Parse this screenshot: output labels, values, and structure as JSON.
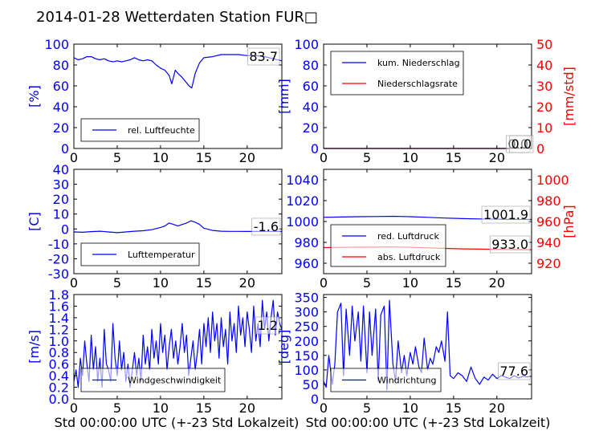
{
  "figure": {
    "title": "2014-01-28 Wetterdaten Station FUR□",
    "xlabel_left": "Std 00:00:00 UTC (+-23 Std Lokalzeit)",
    "xlabel_right": "Std 00:00:00 UTC (+-23 Std Lokalzeit)"
  },
  "colors": {
    "primary": "#0000ff",
    "secondary": "#ff0000",
    "axis": "#000000"
  },
  "chart_data": [
    {
      "id": "humidity",
      "type": "line",
      "ylabel": "[%]",
      "xlim": [
        0,
        24
      ],
      "ylim": [
        0,
        100
      ],
      "xticks": [
        0,
        5,
        10,
        15,
        20
      ],
      "yticks": [
        0,
        20,
        40,
        60,
        80,
        100
      ],
      "series": [
        {
          "name": "rel. Luftfeuchte",
          "color": "#0000ff",
          "x": [
            0,
            0.5,
            1,
            1.5,
            2,
            2.5,
            3,
            3.5,
            4,
            4.5,
            5,
            5.5,
            6,
            6.5,
            7,
            7.5,
            8,
            8.5,
            9,
            9.5,
            10,
            10.5,
            11,
            11.3,
            11.7,
            12,
            12.5,
            13,
            13.3,
            13.6,
            14,
            14.5,
            15,
            16,
            17,
            18,
            19,
            20,
            21,
            22,
            23,
            24
          ],
          "y": [
            87,
            85,
            86,
            88,
            88,
            86,
            85,
            86,
            84,
            83,
            84,
            83,
            84,
            85,
            87,
            85,
            84,
            85,
            84,
            80,
            77,
            75,
            70,
            62,
            75,
            72,
            68,
            63,
            60,
            58,
            72,
            82,
            87,
            88,
            90,
            90,
            90,
            89,
            89,
            88,
            86,
            84
          ]
        }
      ],
      "annotations": [
        "83.7"
      ],
      "legend_loc": "lower-left"
    },
    {
      "id": "precip",
      "type": "line",
      "ylabel": "[mm]",
      "ylabel_right": "[mm/std]",
      "xlim": [
        0,
        24
      ],
      "ylim": [
        0,
        100
      ],
      "ylim_right": [
        0,
        50
      ],
      "xticks": [
        0,
        5,
        10,
        15,
        20
      ],
      "yticks": [
        0,
        20,
        40,
        60,
        80,
        100
      ],
      "yticks_right": [
        0,
        10,
        20,
        30,
        40,
        50
      ],
      "series": [
        {
          "name": "kum. Niederschlag",
          "color": "#0000ff",
          "axis": "left",
          "x": [
            0,
            24
          ],
          "y": [
            0,
            0
          ]
        },
        {
          "name": "Niederschlagsrate",
          "color": "#ff0000",
          "axis": "right",
          "x": [
            0,
            24
          ],
          "y": [
            0,
            0
          ]
        }
      ],
      "annotations": [
        "0.0",
        "0.0"
      ],
      "legend_loc": "upper-left"
    },
    {
      "id": "temperature",
      "type": "line",
      "ylabel": "[C]",
      "xlim": [
        0,
        24
      ],
      "ylim": [
        -30,
        40
      ],
      "xticks": [
        0,
        5,
        10,
        15,
        20
      ],
      "yticks": [
        -30,
        -20,
        -10,
        0,
        10,
        20,
        30,
        40
      ],
      "series": [
        {
          "name": "Lufttemperatur",
          "color": "#0000ff",
          "x": [
            0,
            1,
            2,
            3,
            4,
            5,
            6,
            7,
            8,
            9,
            10,
            10.5,
            11,
            11.5,
            12,
            12.5,
            13,
            13.5,
            14,
            14.5,
            15,
            16,
            17,
            18,
            19,
            20,
            21,
            22,
            23,
            24
          ],
          "y": [
            -2,
            -2.2,
            -1.8,
            -1.5,
            -2,
            -2.5,
            -2,
            -1.5,
            -1.2,
            -0.5,
            1,
            2,
            4,
            3,
            2,
            3,
            4,
            5.5,
            4.5,
            3,
            0.5,
            -1,
            -1.5,
            -1.6,
            -1.6,
            -1.7,
            -1.6,
            -1.6,
            -1.6,
            -1.6
          ]
        }
      ],
      "annotations": [
        "-1.6"
      ],
      "legend_loc": "lower-left"
    },
    {
      "id": "pressure",
      "type": "line",
      "ylabel": "",
      "ylabel_right": "[hPa]",
      "xlim": [
        0,
        24
      ],
      "ylim": [
        950,
        1050
      ],
      "ylim_right": [
        910,
        1010
      ],
      "xticks": [
        0,
        5,
        10,
        15,
        20
      ],
      "yticks": [
        960,
        980,
        1000,
        1020,
        1040
      ],
      "yticks_right": [
        920,
        940,
        960,
        980,
        1000
      ],
      "series": [
        {
          "name": "red. Luftdruck",
          "color": "#0000ff",
          "axis": "left",
          "x": [
            0,
            2,
            4,
            6,
            8,
            10,
            12,
            14,
            16,
            18,
            20,
            22,
            24
          ],
          "y": [
            1004,
            1004.3,
            1004.6,
            1004.8,
            1005,
            1004.6,
            1004,
            1003.3,
            1002.8,
            1002.5,
            1002.2,
            1002,
            1001.9
          ]
        },
        {
          "name": "abs. Luftdruck",
          "color": "#ff0000",
          "axis": "right",
          "x": [
            0,
            2,
            4,
            6,
            8,
            10,
            12,
            14,
            16,
            18,
            20,
            22,
            24
          ],
          "y": [
            935,
            935.2,
            935.4,
            935.5,
            935.6,
            935.3,
            934.8,
            934.2,
            933.8,
            933.5,
            933.3,
            933.1,
            933.0
          ]
        }
      ],
      "annotations": [
        "1001.9",
        "933.0"
      ],
      "legend_loc": "lower-left"
    },
    {
      "id": "windspeed",
      "type": "line",
      "ylabel": "[m/s]",
      "xlim": [
        0,
        24
      ],
      "ylim": [
        0,
        1.8
      ],
      "xticks": [
        0,
        5,
        10,
        15,
        20
      ],
      "yticks": [
        0.0,
        0.2,
        0.4,
        0.6,
        0.8,
        1.0,
        1.2,
        1.4,
        1.6,
        1.8
      ],
      "series": [
        {
          "name": "Windgeschwindigkeit",
          "color": "#0000ff",
          "x": [
            0,
            0.25,
            0.5,
            0.75,
            1,
            1.25,
            1.5,
            1.75,
            2,
            2.25,
            2.5,
            2.75,
            3,
            3.25,
            3.5,
            3.75,
            4,
            4.25,
            4.5,
            4.75,
            5,
            5.25,
            5.5,
            5.75,
            6,
            6.25,
            6.5,
            6.75,
            7,
            7.25,
            7.5,
            7.75,
            8,
            8.25,
            8.5,
            8.75,
            9,
            9.25,
            9.5,
            9.75,
            10,
            10.25,
            10.5,
            10.75,
            11,
            11.25,
            11.5,
            11.75,
            12,
            12.25,
            12.5,
            12.75,
            13,
            13.25,
            13.5,
            13.75,
            14,
            14.25,
            14.5,
            14.75,
            15,
            15.25,
            15.5,
            15.75,
            16,
            16.25,
            16.5,
            16.75,
            17,
            17.25,
            17.5,
            17.75,
            18,
            18.25,
            18.5,
            18.75,
            19,
            19.25,
            19.5,
            19.75,
            20,
            20.25,
            20.5,
            20.75,
            21,
            21.25,
            21.5,
            21.75,
            22,
            22.25,
            22.5,
            22.75,
            23,
            23.25,
            23.5,
            23.75,
            24
          ],
          "y": [
            0.3,
            0.5,
            0.2,
            0.7,
            0.4,
            1.0,
            0.6,
            0.3,
            1.1,
            0.5,
            0.9,
            0.3,
            0.7,
            0.2,
            1.2,
            0.6,
            0.5,
            0.3,
            1.3,
            0.7,
            0.4,
            1.0,
            0.5,
            0.8,
            0.3,
            0.6,
            0.2,
            0.5,
            0.8,
            0.4,
            0.7,
            0.3,
            1.1,
            0.6,
            0.9,
            0.5,
            1.2,
            0.7,
            1.0,
            0.6,
            1.3,
            0.8,
            1.1,
            0.5,
            0.9,
            1.2,
            0.7,
            1.0,
            0.6,
            0.9,
            1.3,
            0.8,
            1.1,
            0.4,
            0.7,
            1.0,
            0.5,
            0.8,
            1.2,
            0.6,
            1.3,
            0.9,
            1.4,
            0.8,
            1.5,
            1.0,
            1.3,
            0.7,
            1.4,
            0.9,
            1.2,
            0.6,
            1.5,
            1.0,
            1.3,
            0.8,
            1.6,
            1.1,
            1.4,
            0.9,
            1.5,
            1.2,
            0.8,
            1.6,
            1.0,
            1.3,
            0.9,
            1.7,
            1.2,
            1.5,
            1.0,
            1.4,
            1.7,
            1.1,
            1.5,
            1.3,
            1.2
          ]
        }
      ],
      "annotations": [
        "1.2"
      ],
      "legend_loc": "lower-left"
    },
    {
      "id": "winddir",
      "type": "line",
      "ylabel": "[deg]",
      "xlim": [
        0,
        24
      ],
      "ylim": [
        0,
        360
      ],
      "xticks": [
        0,
        5,
        10,
        15,
        20
      ],
      "yticks": [
        0,
        50,
        100,
        150,
        200,
        250,
        300,
        350
      ],
      "series": [
        {
          "name": "Windrichtung",
          "color": "#0000ff",
          "x": [
            0,
            0.3,
            0.6,
            1,
            1.3,
            1.6,
            2,
            2.3,
            2.6,
            3,
            3.3,
            3.6,
            4,
            4.3,
            4.6,
            5,
            5.3,
            5.6,
            6,
            6.3,
            6.6,
            7,
            7.3,
            7.6,
            8,
            8.3,
            8.6,
            9,
            9.3,
            9.6,
            10,
            10.3,
            10.6,
            11,
            11.3,
            11.6,
            12,
            12.3,
            12.6,
            13,
            13.3,
            13.6,
            14,
            14.3,
            14.6,
            15,
            15.5,
            16,
            16.5,
            17,
            17.5,
            18,
            18.5,
            19,
            19.5,
            20,
            20.5,
            21,
            21.5,
            22,
            22.5,
            23,
            23.5,
            24
          ],
          "y": [
            60,
            40,
            150,
            50,
            120,
            300,
            330,
            80,
            310,
            150,
            320,
            200,
            300,
            130,
            320,
            90,
            300,
            150,
            310,
            60,
            290,
            320,
            30,
            340,
            120,
            60,
            200,
            90,
            150,
            80,
            160,
            120,
            180,
            110,
            90,
            210,
            100,
            140,
            120,
            180,
            160,
            200,
            130,
            300,
            80,
            70,
            90,
            80,
            60,
            110,
            70,
            50,
            75,
            65,
            85,
            70,
            80,
            75,
            70,
            80,
            72,
            78,
            76,
            78
          ]
        }
      ],
      "annotations": [
        "77.6"
      ],
      "legend_loc": "lower-left"
    }
  ]
}
